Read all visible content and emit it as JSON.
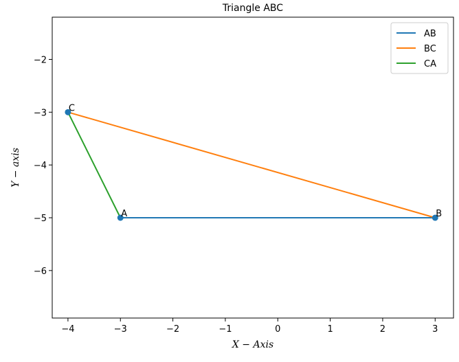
{
  "chart_data": {
    "type": "line",
    "title": "Triangle ABC",
    "xlabel": "X − Axis",
    "ylabel": "Y − axis",
    "xlim": [
      -4.3,
      3.35
    ],
    "ylim": [
      -6.9,
      -1.2
    ],
    "x_ticks": [
      -4,
      -3,
      -2,
      -1,
      0,
      1,
      2,
      3
    ],
    "y_ticks": [
      -6,
      -5,
      -4,
      -3,
      -2
    ],
    "grid": false,
    "legend_position": "top-right",
    "points": [
      {
        "label": "A",
        "x": -3,
        "y": -5
      },
      {
        "label": "B",
        "x": 3,
        "y": -5
      },
      {
        "label": "C",
        "x": -4,
        "y": -3
      }
    ],
    "marker_color": "#1f77b4",
    "series": [
      {
        "name": "AB",
        "color": "#1f77b4",
        "x": [
          -3,
          3
        ],
        "y": [
          -5,
          -5
        ]
      },
      {
        "name": "BC",
        "color": "#ff7f0e",
        "x": [
          3,
          -4
        ],
        "y": [
          -5,
          -3
        ]
      },
      {
        "name": "CA",
        "color": "#2ca02c",
        "x": [
          -4,
          -3
        ],
        "y": [
          -3,
          -5
        ]
      }
    ]
  }
}
